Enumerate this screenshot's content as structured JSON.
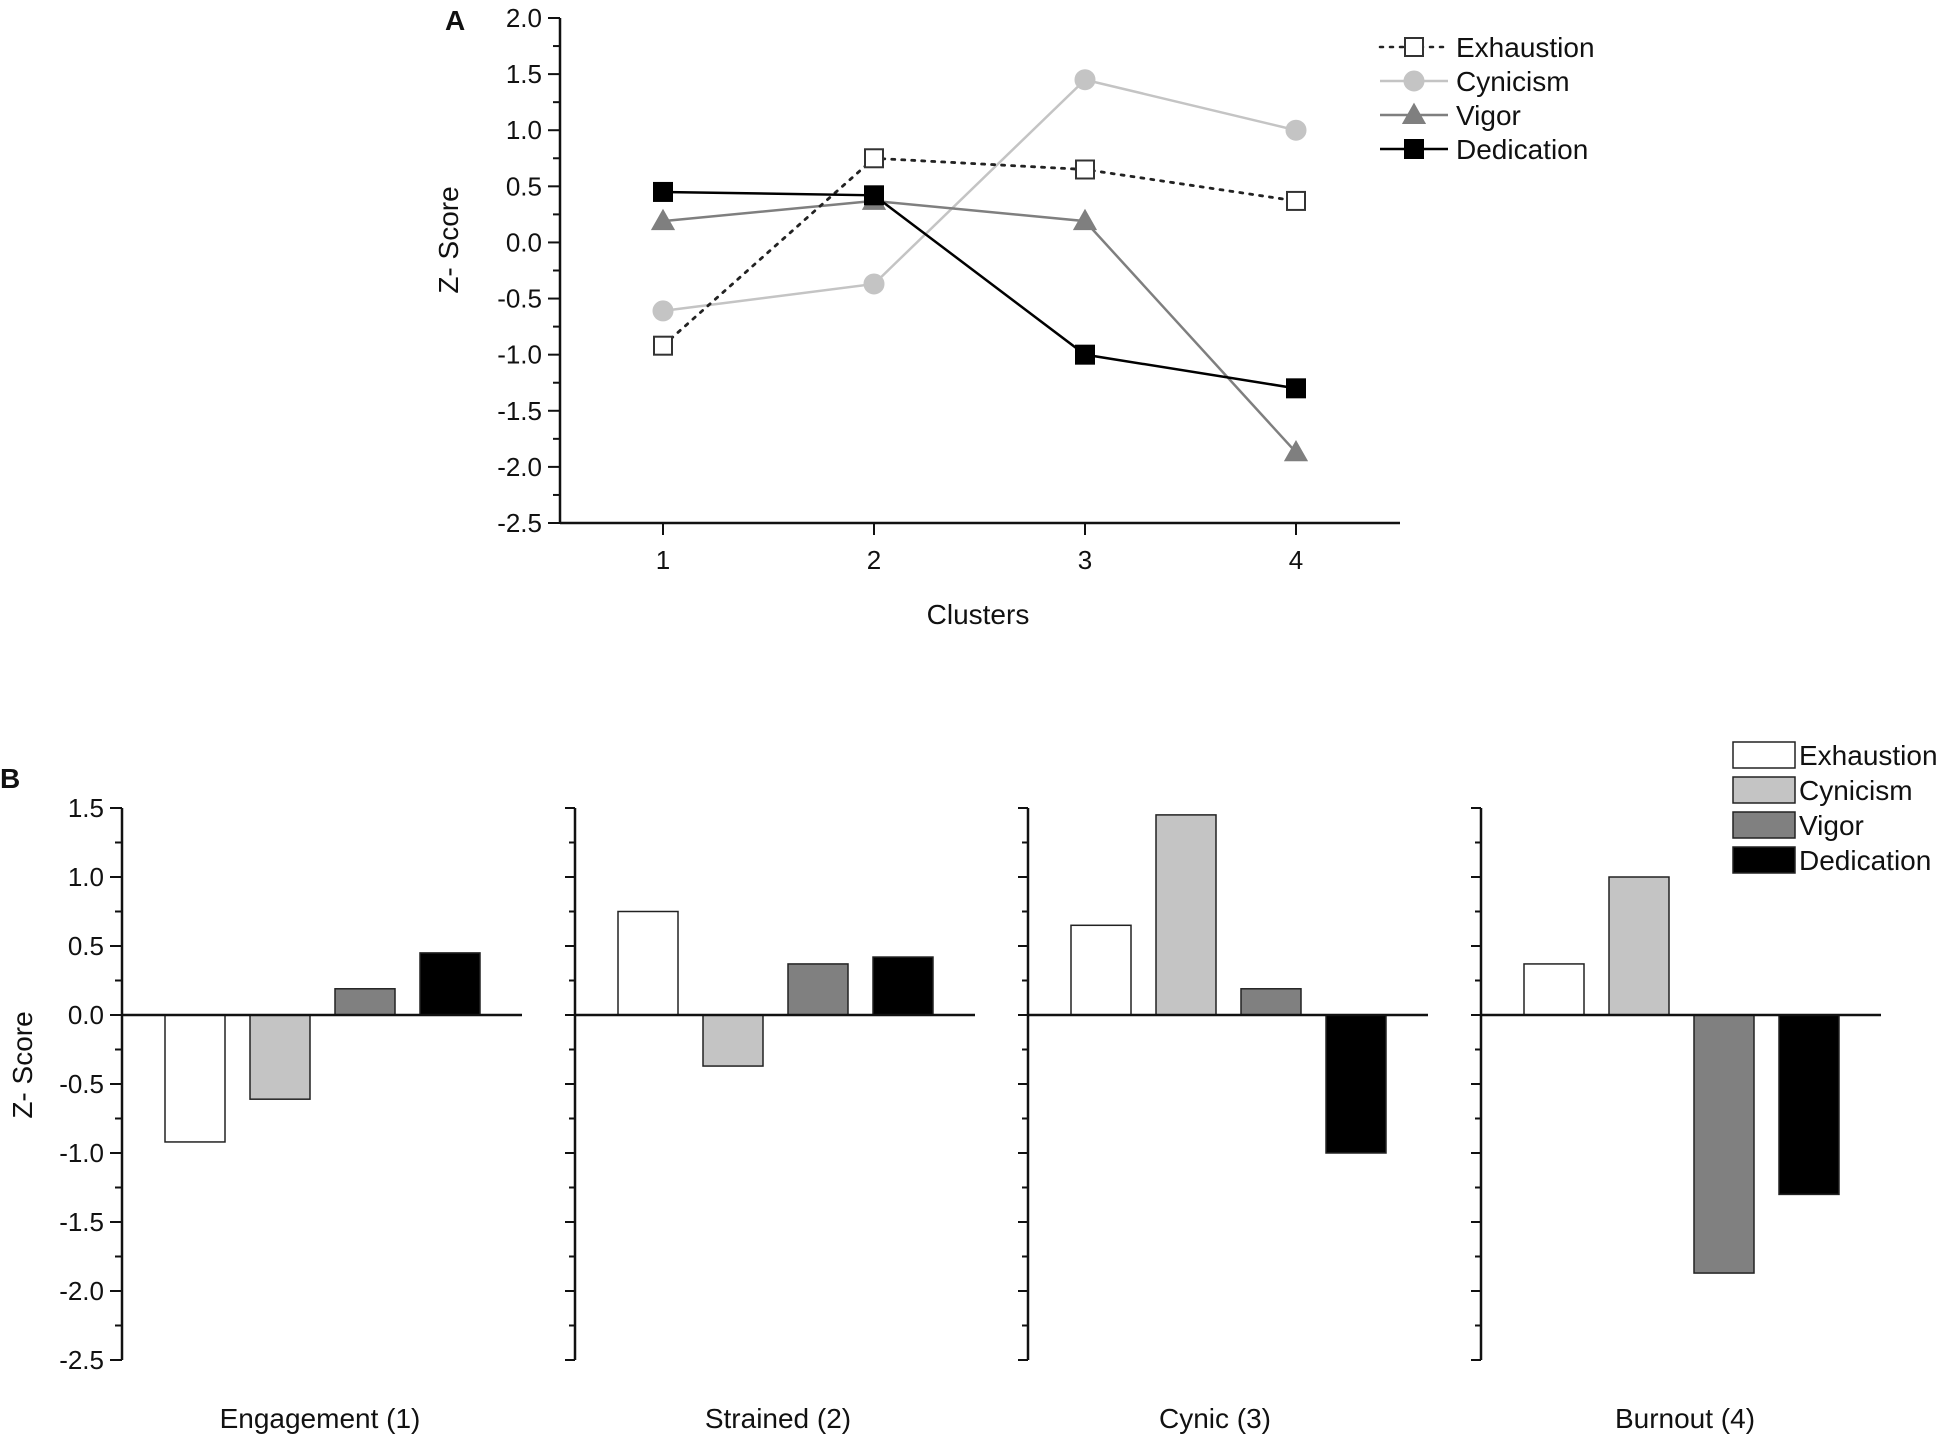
{
  "panels": {
    "a": {
      "label": "A"
    },
    "b": {
      "label": "B"
    }
  },
  "series_styles": [
    {
      "name": "Exhaustion",
      "line_color": "#222222",
      "marker": "open-square",
      "dash": "dotted",
      "bar_fill": "#ffffff"
    },
    {
      "name": "Cynicism",
      "line_color": "#c4c4c4",
      "marker": "circle",
      "dash": "solid",
      "bar_fill": "#c4c4c4"
    },
    {
      "name": "Vigor",
      "line_color": "#7f7f7f",
      "marker": "triangle",
      "dash": "solid",
      "bar_fill": "#808080"
    },
    {
      "name": "Dedication",
      "line_color": "#000000",
      "marker": "filled-square",
      "dash": "solid",
      "bar_fill": "#000000"
    }
  ],
  "chart_data": [
    {
      "type": "line",
      "panel": "A",
      "title": "",
      "xlabel": "Clusters",
      "ylabel": "Z- Score",
      "x": [
        1,
        2,
        3,
        4
      ],
      "x_tick_labels": [
        "1",
        "2",
        "3",
        "4"
      ],
      "ylim": [
        -2.5,
        2.0
      ],
      "y_ticks": [
        2.0,
        1.5,
        1.0,
        0.5,
        0.0,
        -0.5,
        -1.0,
        -1.5,
        -2.0,
        -2.5
      ],
      "y_tick_labels": [
        "2.0",
        "1.5",
        "1.0",
        "0.5",
        "0.0",
        "-0.5",
        "-1.0",
        "-1.5",
        "-2.0",
        "-2.5"
      ],
      "legend_position": "top-right",
      "series": [
        {
          "name": "Exhaustion",
          "values": [
            -0.92,
            0.75,
            0.65,
            0.37
          ]
        },
        {
          "name": "Cynicism",
          "values": [
            -0.61,
            -0.37,
            1.45,
            1.0
          ]
        },
        {
          "name": "Vigor",
          "values": [
            0.19,
            0.37,
            0.19,
            -1.87
          ]
        },
        {
          "name": "Dedication",
          "values": [
            0.45,
            0.42,
            -1.0,
            -1.3
          ]
        }
      ]
    },
    {
      "type": "bar",
      "panel": "B",
      "title": "",
      "xlabel": "",
      "ylabel": "Z- Score",
      "categories": [
        "Engagement (1)",
        "Strained (2)",
        "Cynic (3)",
        "Burnout (4)"
      ],
      "ylim": [
        -2.5,
        1.5
      ],
      "y_ticks": [
        1.5,
        1.0,
        0.5,
        0.0,
        -0.5,
        -1.0,
        -1.5,
        -2.0,
        -2.5
      ],
      "y_tick_labels": [
        "1.5",
        "1.0",
        "0.5",
        "0.0",
        "-0.5",
        "-1.0",
        "-1.5",
        "-2.0",
        "-2.5"
      ],
      "legend_position": "top-right",
      "series": [
        {
          "name": "Exhaustion",
          "values": [
            -0.92,
            0.75,
            0.65,
            0.37
          ]
        },
        {
          "name": "Cynicism",
          "values": [
            -0.61,
            -0.37,
            1.45,
            1.0
          ]
        },
        {
          "name": "Vigor",
          "values": [
            0.19,
            0.37,
            0.19,
            -1.87
          ]
        },
        {
          "name": "Dedication",
          "values": [
            0.45,
            0.42,
            -1.0,
            -1.3
          ]
        }
      ]
    }
  ]
}
